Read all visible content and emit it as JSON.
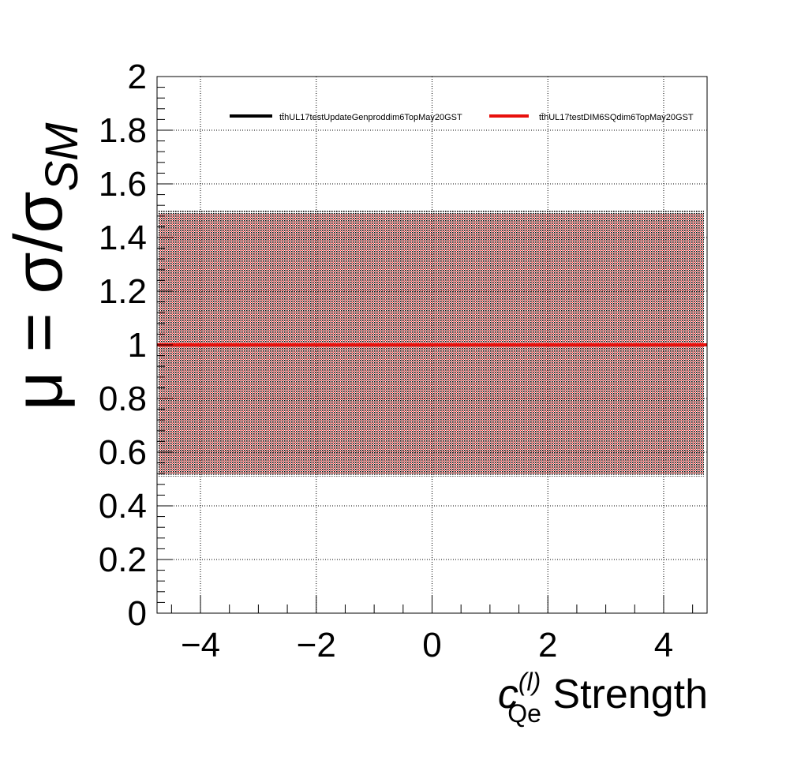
{
  "chart_data": {
    "type": "line",
    "title": "",
    "xlabel": {
      "symbol": "c",
      "superscript": "(l)",
      "subscript": "Qe",
      "suffix": " Strength"
    },
    "ylabel": {
      "prefix": "μ = σ/σ",
      "subscript": "SM"
    },
    "xlim": [
      -4.75,
      4.75
    ],
    "ylim": [
      0,
      2
    ],
    "x_ticks": [
      -4,
      -2,
      0,
      2,
      4
    ],
    "x_tick_labels": [
      "−4",
      "−2",
      "0",
      "2",
      "4"
    ],
    "y_ticks": [
      0,
      0.2,
      0.4,
      0.6,
      0.8,
      1,
      1.2,
      1.4,
      1.6,
      1.8,
      2
    ],
    "y_tick_labels": [
      "0",
      "0.2",
      "0.4",
      "0.6",
      "0.8",
      "1",
      "1.2",
      "1.4",
      "1.6",
      "1.8",
      "2"
    ],
    "grid": true,
    "legend_position": "top",
    "series": [
      {
        "name": "tt̄hUL17testUpdateGenproddim6TopMay20GST",
        "color": "#000000",
        "x": [
          -4.75,
          4.75
        ],
        "values": [
          1.0,
          1.0
        ],
        "band_low": 0.51,
        "band_high": 1.5
      },
      {
        "name": "tt̄hUL17testDIM6SQdim6TopMay20GST",
        "color": "#e8100c",
        "x": [
          -4.75,
          4.75
        ],
        "values": [
          1.0,
          1.0
        ],
        "band_low": 0.52,
        "band_high": 1.49
      }
    ]
  }
}
